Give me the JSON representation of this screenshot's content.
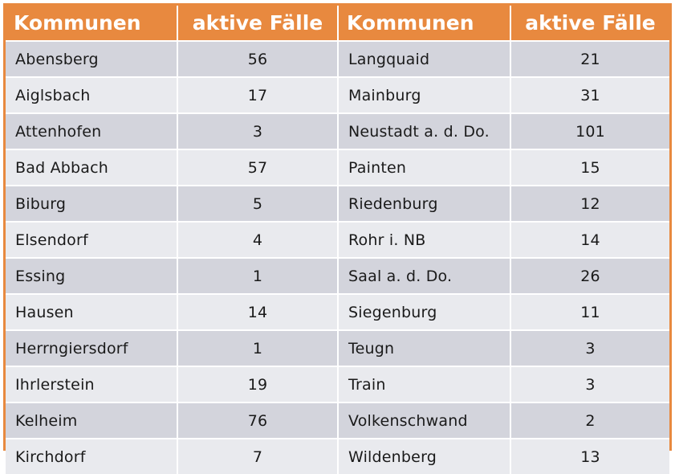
{
  "header": {
    "col1": "Kommunen",
    "col2": "aktive Fälle",
    "col3": "Kommunen",
    "col4": "aktive Fälle"
  },
  "rows": [
    {
      "left_name": "Abensberg",
      "left_count": "56",
      "right_name": "Langquaid",
      "right_count": "21"
    },
    {
      "left_name": "Aiglsbach",
      "left_count": "17",
      "right_name": "Mainburg",
      "right_count": "31"
    },
    {
      "left_name": "Attenhofen",
      "left_count": "3",
      "right_name": "Neustadt a. d. Do.",
      "right_count": "101"
    },
    {
      "left_name": "Bad Abbach",
      "left_count": "57",
      "right_name": "Painten",
      "right_count": "15"
    },
    {
      "left_name": "Biburg",
      "left_count": "5",
      "right_name": "Riedenburg",
      "right_count": "12"
    },
    {
      "left_name": "Elsendorf",
      "left_count": "4",
      "right_name": "Rohr i. NB",
      "right_count": "14"
    },
    {
      "left_name": "Essing",
      "left_count": "1",
      "right_name": "Saal a. d. Do.",
      "right_count": "26"
    },
    {
      "left_name": "Hausen",
      "left_count": "14",
      "right_name": "Siegenburg",
      "right_count": "11"
    },
    {
      "left_name": "Herrngiersdorf",
      "left_count": "1",
      "right_name": "Teugn",
      "right_count": "3"
    },
    {
      "left_name": "Ihrlerstein",
      "left_count": "19",
      "right_name": "Train",
      "right_count": "3"
    },
    {
      "left_name": "Kelheim",
      "left_count": "76",
      "right_name": "Volkenschwand",
      "right_count": "2"
    },
    {
      "left_name": "Kirchdorf",
      "left_count": "7",
      "right_name": "Wildenberg",
      "right_count": "13"
    }
  ],
  "colors": {
    "header_bg": "#e8893f",
    "row_dark": "#d3d4dc",
    "row_light": "#e9eaee"
  }
}
